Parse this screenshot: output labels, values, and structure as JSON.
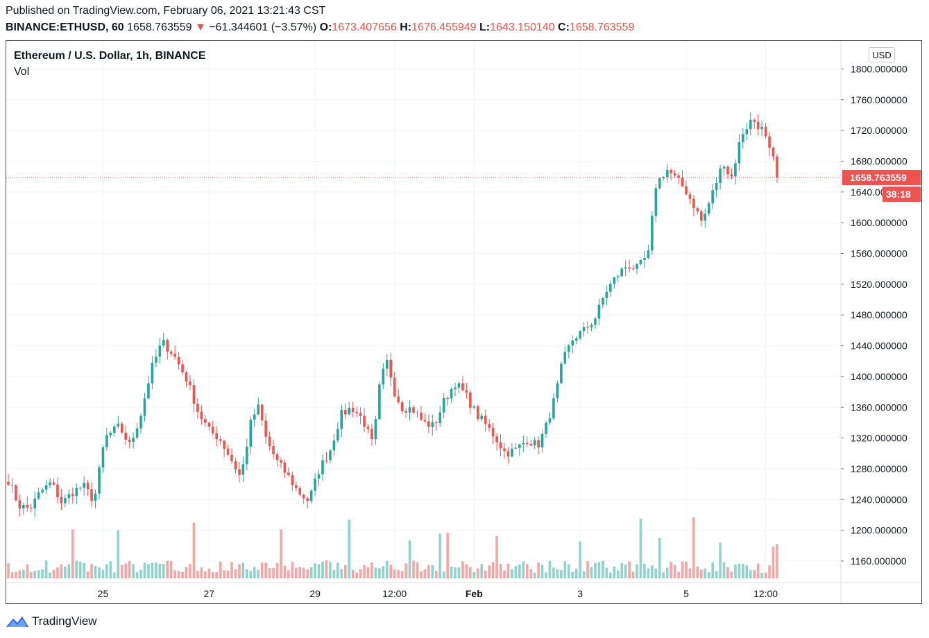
{
  "header": {
    "published": "Published on TradingView.com, February 06, 2021 13:21:43 CST",
    "symbol": "BINANCE:ETHUSD, 60",
    "last": "1658.763559",
    "change_arrow": "▼",
    "change": "−61.344601 (−3.57%)",
    "o_label": "O:",
    "o_value": "1673.407656",
    "h_label": "H:",
    "h_value": "1676.455949",
    "l_label": "L:",
    "l_value": "1643.150140",
    "c_label": "C:",
    "c_value": "1658.763559"
  },
  "legend": {
    "title": "Ethereum / U.S. Dollar, 1h, BINANCE",
    "volume": "Vol"
  },
  "currency_button": "USD",
  "logo_text": "TradingView",
  "colors": {
    "up": "#26a69a",
    "down": "#ef5350",
    "up_vol": "#8fd3cc",
    "down_vol": "#f4a6a5",
    "grid": "#f0f3fa",
    "price_tag": "#ef5350"
  },
  "chart_data": {
    "type": "candlestick",
    "symbol": "ETHUSD",
    "interval": "1h",
    "y_ticks": [
      "1160.000000",
      "1200.000000",
      "1240.000000",
      "1280.000000",
      "1320.000000",
      "1360.000000",
      "1400.000000",
      "1440.000000",
      "1480.000000",
      "1520.000000",
      "1560.000000",
      "1600.000000",
      "1640.000000",
      "1680.000000",
      "1720.000000",
      "1760.000000",
      "1800.000000"
    ],
    "y_tick_values": [
      1160,
      1200,
      1240,
      1280,
      1320,
      1360,
      1400,
      1440,
      1480,
      1520,
      1560,
      1600,
      1640,
      1680,
      1720,
      1760,
      1800
    ],
    "ylim": [
      1140,
      1810
    ],
    "x_ticks": [
      {
        "label": "25",
        "bold": false
      },
      {
        "label": "27",
        "bold": false
      },
      {
        "label": "29",
        "bold": false
      },
      {
        "label": "12:00",
        "bold": false
      },
      {
        "label": "Feb",
        "bold": true
      },
      {
        "label": "3",
        "bold": false
      },
      {
        "label": "5",
        "bold": false
      },
      {
        "label": "12:00",
        "bold": false
      }
    ],
    "x_tick_bar_index": [
      25,
      53,
      81,
      102,
      123,
      151,
      179,
      200
    ],
    "last_price": 1658.763559,
    "last_price_label": "1658.763559",
    "countdown": "38:18",
    "bar_count": 204,
    "anchors": [
      [
        0,
        1265
      ],
      [
        3,
        1232
      ],
      [
        6,
        1228
      ],
      [
        9,
        1250
      ],
      [
        12,
        1262
      ],
      [
        15,
        1235
      ],
      [
        18,
        1250
      ],
      [
        21,
        1258
      ],
      [
        24,
        1238
      ],
      [
        27,
        1320
      ],
      [
        31,
        1335
      ],
      [
        34,
        1310
      ],
      [
        37,
        1350
      ],
      [
        40,
        1410
      ],
      [
        43,
        1445
      ],
      [
        46,
        1430
      ],
      [
        50,
        1395
      ],
      [
        53,
        1355
      ],
      [
        56,
        1330
      ],
      [
        59,
        1320
      ],
      [
        62,
        1295
      ],
      [
        65,
        1268
      ],
      [
        68,
        1345
      ],
      [
        70,
        1360
      ],
      [
        72,
        1320
      ],
      [
        75,
        1290
      ],
      [
        78,
        1272
      ],
      [
        81,
        1250
      ],
      [
        84,
        1238
      ],
      [
        87,
        1280
      ],
      [
        90,
        1305
      ],
      [
        93,
        1350
      ],
      [
        96,
        1360
      ],
      [
        99,
        1345
      ],
      [
        102,
        1310
      ],
      [
        104,
        1395
      ],
      [
        106,
        1420
      ],
      [
        108,
        1380
      ],
      [
        110,
        1360
      ],
      [
        113,
        1358
      ],
      [
        116,
        1340
      ],
      [
        119,
        1335
      ],
      [
        122,
        1370
      ],
      [
        125,
        1392
      ],
      [
        128,
        1375
      ],
      [
        131,
        1350
      ],
      [
        133,
        1340
      ],
      [
        136,
        1322
      ],
      [
        139,
        1300
      ],
      [
        142,
        1305
      ],
      [
        145,
        1318
      ],
      [
        148,
        1310
      ],
      [
        150,
        1330
      ],
      [
        153,
        1375
      ],
      [
        155,
        1420
      ],
      [
        158,
        1450
      ],
      [
        161,
        1460
      ],
      [
        164,
        1475
      ],
      [
        167,
        1510
      ],
      [
        170,
        1530
      ],
      [
        173,
        1545
      ],
      [
        176,
        1540
      ],
      [
        179,
        1560
      ],
      [
        181,
        1648
      ],
      [
        184,
        1670
      ],
      [
        186,
        1660
      ],
      [
        189,
        1645
      ],
      [
        192,
        1620
      ],
      [
        194,
        1600
      ],
      [
        197,
        1640
      ],
      [
        200,
        1680
      ],
      [
        202,
        1655
      ],
      [
        205,
        1715
      ],
      [
        208,
        1735
      ],
      [
        211,
        1720
      ],
      [
        213,
        1690
      ],
      [
        215,
        1670
      ],
      [
        216,
        1659
      ]
    ]
  }
}
